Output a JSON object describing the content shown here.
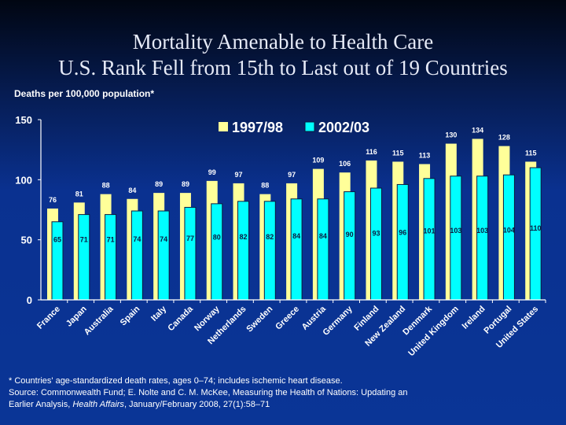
{
  "slide": {
    "title_line1": "Mortality Amenable to Health Care",
    "title_line2": "U.S. Rank Fell from 15th to Last out of 19 Countries",
    "y_unit_label": "Deaths per 100,000 population*",
    "footnote": {
      "line1": "* Countries' age-standardized death rates, ages 0–74; includes ischemic heart disease.",
      "line2": "Source: Commonwealth Fund; E. Nolte and C. M. McKee, Measuring the Health of Nations: Updating an",
      "line3_pre": "Earlier Analysis, ",
      "line3_italic": "Health Affairs",
      "line3_post": ", January/February 2008, 27(1):58–71"
    }
  },
  "chart_data": {
    "type": "bar",
    "title": "Mortality Amenable to Health Care",
    "subtitle": "U.S. Rank Fell from 15th to Last out of 19 Countries",
    "xlabel": "",
    "ylabel": "Deaths per 100,000 population*",
    "ylim": [
      0,
      150
    ],
    "yticks": [
      0,
      50,
      100,
      150
    ],
    "grid": false,
    "legend_position": "top-center",
    "categories": [
      "France",
      "Japan",
      "Australia",
      "Spain",
      "Italy",
      "Canada",
      "Norway",
      "Netherlands",
      "Sweden",
      "Greece",
      "Austria",
      "Germany",
      "Finland",
      "New Zealand",
      "Denmark",
      "United Kingdom",
      "Ireland",
      "Portugal",
      "United States"
    ],
    "series": [
      {
        "name": "1997/98",
        "color": "#ffff99",
        "values": [
          76,
          81,
          88,
          84,
          89,
          89,
          99,
          97,
          88,
          97,
          109,
          106,
          116,
          115,
          113,
          130,
          134,
          128,
          115
        ]
      },
      {
        "name": "2002/03",
        "color": "#00ffff",
        "values": [
          65,
          71,
          71,
          74,
          74,
          77,
          80,
          82,
          82,
          84,
          84,
          90,
          93,
          96,
          101,
          103,
          103,
          104,
          110
        ]
      }
    ],
    "colors": {
      "axis": "#ffffff",
      "label_light": "#ffffff",
      "label_dark": "#0a1a40"
    }
  }
}
